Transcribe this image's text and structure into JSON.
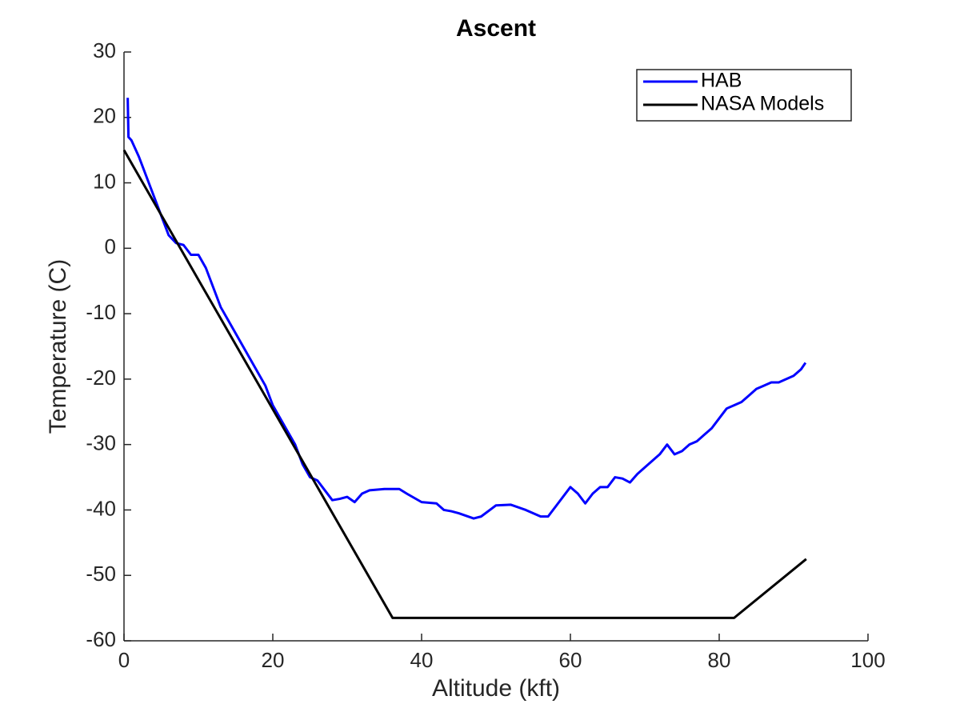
{
  "chart_data": {
    "type": "line",
    "title": "Ascent",
    "x_label": "Altitude (kft)",
    "y_label": "Temperature (C)",
    "xlim": [
      0,
      100
    ],
    "xticks": [
      0,
      20,
      40,
      60,
      80,
      100
    ],
    "ylim": [
      -60,
      30
    ],
    "yticks": [
      -60,
      -50,
      -40,
      -30,
      -20,
      -10,
      0,
      10,
      20,
      30
    ],
    "legend": "top-right",
    "series": [
      {
        "name": "HAB",
        "color": "#0000ff",
        "x": [
          0.5,
          0.6,
          1,
          2,
          3,
          4,
          5,
          6,
          7,
          8,
          9,
          10,
          11,
          12,
          13,
          14,
          15,
          16,
          17,
          18,
          19,
          20,
          21,
          22,
          23,
          24,
          25,
          26,
          27,
          28,
          29,
          30,
          31,
          32,
          33,
          35,
          37,
          38,
          40,
          42,
          43,
          44,
          45,
          47,
          48,
          50,
          52,
          54,
          56,
          57,
          58,
          60,
          61,
          62,
          63,
          64,
          65,
          66,
          67,
          68,
          69,
          70,
          72,
          73,
          74,
          75,
          76,
          77,
          78,
          79,
          80,
          81,
          82,
          83,
          84,
          85,
          86,
          87,
          88,
          89,
          90,
          91,
          91.6
        ],
        "values": [
          23,
          17,
          16.5,
          14,
          11,
          8,
          5,
          2,
          0.8,
          0.5,
          -1,
          -1,
          -3,
          -6,
          -9,
          -11,
          -13,
          -15,
          -17,
          -19,
          -21,
          -24,
          -26,
          -28,
          -30,
          -33,
          -35,
          -35.5,
          -37,
          -38.5,
          -38.3,
          -38,
          -38.8,
          -37.5,
          -37,
          -36.8,
          -36.8,
          -37.5,
          -38.8,
          -39,
          -40,
          -40.2,
          -40.5,
          -41.3,
          -41,
          -39.3,
          -39.2,
          -40,
          -41,
          -41,
          -39.5,
          -36.5,
          -37.5,
          -39,
          -37.5,
          -36.5,
          -36.5,
          -35,
          -35.2,
          -35.8,
          -34.5,
          -33.5,
          -31.5,
          -30,
          -31.5,
          -31,
          -30,
          -29.5,
          -28.5,
          -27.5,
          -26,
          -24.5,
          -24,
          -23.5,
          -22.5,
          -21.5,
          -21,
          -20.5,
          -20.5,
          -20,
          -19.5,
          -18.5,
          -17.5
        ]
      },
      {
        "name": "NASA Models",
        "color": "#000000",
        "x": [
          0,
          36.1,
          82,
          91.7
        ],
        "values": [
          15,
          -56.5,
          -56.5,
          -47.5
        ]
      }
    ]
  }
}
